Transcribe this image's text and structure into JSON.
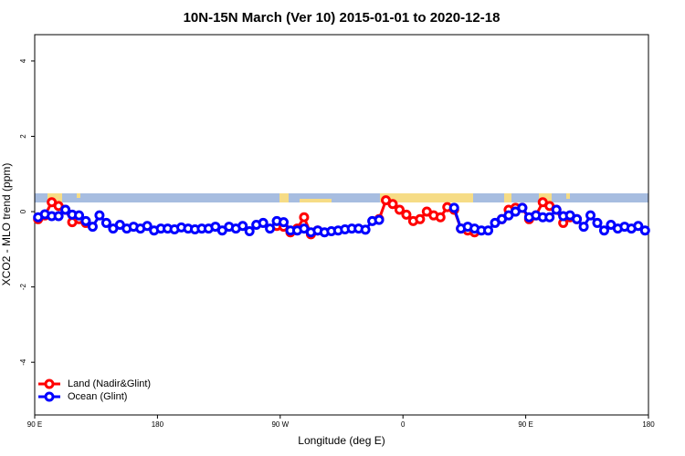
{
  "chart_data": {
    "type": "line",
    "title": "10N-15N March (Ver 10)   2015-01-01 to 2020-12-18",
    "x_label": "Longitude (deg E)",
    "y_label": "XCO2 - MLO trend (ppm)",
    "xlim": [
      90,
      540
    ],
    "ylim": [
      -5.4,
      4.7
    ],
    "xticks": [
      {
        "value": 90,
        "label": "90 E"
      },
      180,
      {
        "value": 270,
        "label": "90 W"
      },
      {
        "value": 360,
        "label": "0"
      },
      {
        "value": 450,
        "label": "90 E"
      },
      {
        "value": 540,
        "label": "180"
      }
    ],
    "yticks": [
      -4,
      -2,
      0,
      2,
      4
    ],
    "legend": "bottom-left",
    "x": [
      92.5,
      97.5,
      102.5,
      107.5,
      112.5,
      117.5,
      122.5,
      127.5,
      132.5,
      137.5,
      142.5,
      147.5,
      152.5,
      157.5,
      162.5,
      167.5,
      172.5,
      177.5,
      182.5,
      187.5,
      192.5,
      197.5,
      202.5,
      207.5,
      212.5,
      217.5,
      222.5,
      227.5,
      232.5,
      237.5,
      242.5,
      247.5,
      252.5,
      257.5,
      262.5,
      267.5,
      272.5,
      277.5,
      282.5,
      287.5,
      292.5,
      297.5,
      302.5,
      307.5,
      312.5,
      317.5,
      322.5,
      327.5,
      332.5,
      337.5,
      342.5,
      347.5,
      352.5,
      357.5,
      362.5,
      367.5,
      372.5,
      377.5,
      382.5,
      387.5,
      392.5,
      397.5,
      402.5,
      407.5,
      412.5,
      417.5,
      422.5,
      427.5,
      432.5,
      437.5,
      442.5,
      447.5,
      452.5,
      457.5,
      462.5,
      467.5,
      472.5,
      477.5,
      482.5,
      487.5,
      492.5,
      497.5,
      502.5,
      507.5,
      512.5,
      517.5,
      522.5,
      527.5,
      532.5,
      537.5
    ],
    "series": [
      {
        "name": "Land (Nadir&Glint)",
        "color": "#ff0000",
        "values": [
          -0.2,
          -0.1,
          0.25,
          0.15,
          0.05,
          -0.28,
          -0.2,
          -0.3,
          null,
          null,
          null,
          null,
          null,
          null,
          null,
          null,
          null,
          null,
          null,
          null,
          null,
          null,
          null,
          null,
          null,
          null,
          null,
          null,
          null,
          null,
          null,
          null,
          null,
          null,
          null,
          -0.38,
          -0.4,
          -0.55,
          -0.45,
          -0.15,
          -0.6,
          -0.5,
          null,
          null,
          null,
          null,
          null,
          null,
          null,
          null,
          -0.2,
          0.3,
          0.2,
          0.05,
          -0.08,
          -0.25,
          -0.2,
          0.0,
          -0.1,
          -0.15,
          0.12,
          0.05,
          -0.45,
          -0.5,
          -0.55,
          null,
          null,
          null,
          -0.2,
          0.05,
          0.1,
          0.1,
          -0.2,
          -0.1,
          0.25,
          0.15,
          0.05,
          -0.3,
          -0.15,
          -0.2,
          null,
          null,
          null,
          null,
          null,
          null,
          null,
          null,
          null,
          null
        ]
      },
      {
        "name": "Ocean (Glint)",
        "color": "#0000ff",
        "values": [
          -0.15,
          -0.07,
          -0.12,
          -0.12,
          0.05,
          -0.08,
          -0.1,
          -0.25,
          -0.4,
          -0.1,
          -0.3,
          -0.45,
          -0.35,
          -0.45,
          -0.4,
          -0.45,
          -0.38,
          -0.5,
          -0.45,
          -0.45,
          -0.47,
          -0.42,
          -0.45,
          -0.47,
          -0.45,
          -0.45,
          -0.4,
          -0.5,
          -0.4,
          -0.45,
          -0.38,
          -0.52,
          -0.35,
          -0.3,
          -0.45,
          -0.25,
          -0.28,
          -0.5,
          -0.5,
          -0.45,
          -0.55,
          -0.5,
          -0.55,
          -0.52,
          -0.5,
          -0.47,
          -0.45,
          -0.45,
          -0.48,
          -0.25,
          -0.22,
          null,
          null,
          null,
          null,
          null,
          null,
          null,
          null,
          null,
          null,
          0.1,
          -0.45,
          -0.4,
          -0.45,
          -0.5,
          -0.5,
          -0.3,
          -0.2,
          -0.1,
          0.0,
          0.1,
          -0.15,
          -0.1,
          -0.15,
          -0.15,
          0.05,
          -0.12,
          -0.1,
          -0.2,
          -0.4,
          -0.1,
          -0.3,
          -0.5,
          -0.35,
          -0.45,
          -0.4,
          -0.45,
          -0.38,
          -0.5
        ]
      }
    ]
  }
}
